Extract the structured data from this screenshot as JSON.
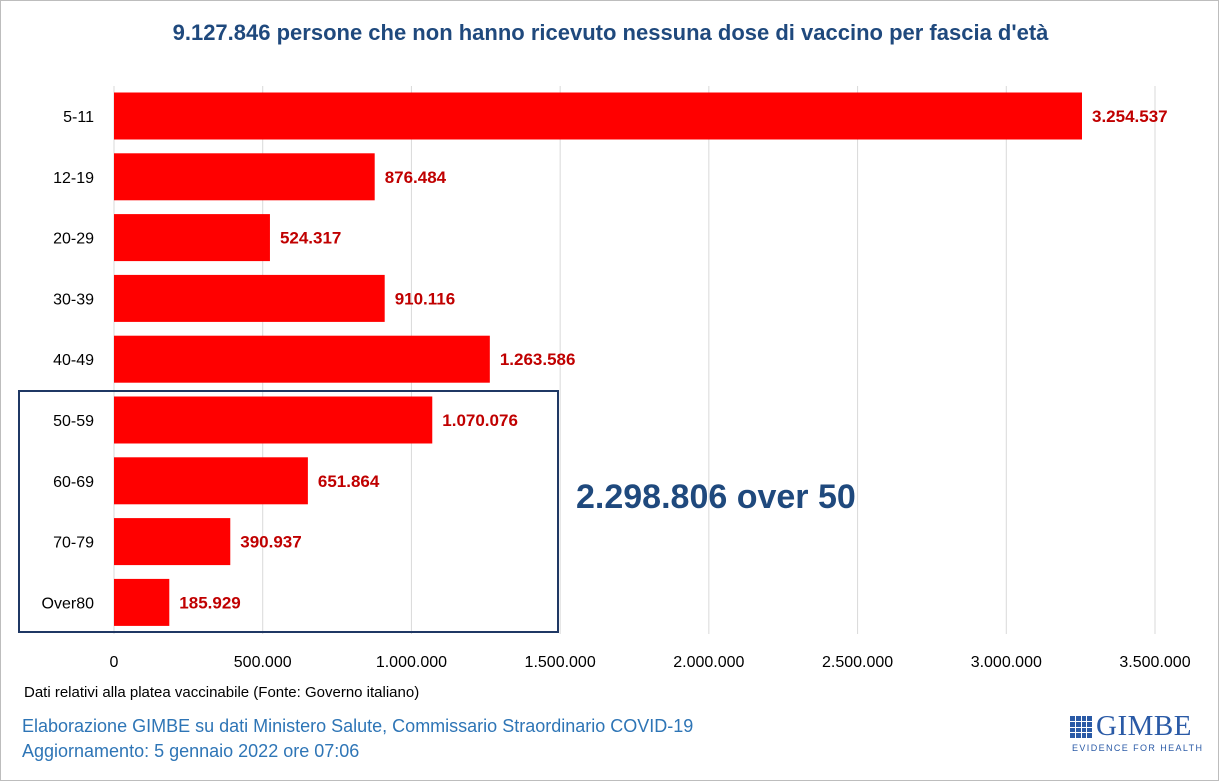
{
  "chart_data": {
    "type": "bar",
    "orientation": "horizontal",
    "title": "9.127.846 persone che non hanno ricevuto nessuna dose di vaccino per fascia d'età",
    "categories": [
      "5-11",
      "12-19",
      "20-29",
      "30-39",
      "40-49",
      "50-59",
      "60-69",
      "70-79",
      "Over80"
    ],
    "values": [
      3254537,
      876484,
      524317,
      910116,
      1263586,
      1070076,
      651864,
      390937,
      185929
    ],
    "value_labels": [
      "3.254.537",
      "876.484",
      "524.317",
      "910.116",
      "1.263.586",
      "1.070.076",
      "651.864",
      "390.937",
      "185.929"
    ],
    "x_ticks": [
      0,
      500000,
      1000000,
      1500000,
      2000000,
      2500000,
      3000000,
      3500000
    ],
    "x_tick_labels": [
      "0",
      "500.000",
      "1.000.000",
      "1.500.000",
      "2.000.000",
      "2.500.000",
      "3.000.000",
      "3.500.000"
    ],
    "xlim": [
      0,
      3500000
    ],
    "xlabel": "",
    "ylabel": "",
    "grid": "vertical",
    "legend": "none",
    "bar_color": "#ff0000",
    "value_label_color": "#c00000",
    "highlight": {
      "categories": [
        "50-59",
        "60-69",
        "70-79",
        "Over80"
      ],
      "box_color": "#1f3864",
      "label": "2.298.806 over 50"
    }
  },
  "footer": {
    "source_note": "Dati relativi alla platea vaccinabile (Fonte: Governo italiano)",
    "credit_line_1": "Elaborazione GIMBE su dati Ministero Salute, Commissario Straordinario COVID-19",
    "credit_line_2": "Aggiornamento: 5 gennaio 2022 ore 07:06"
  },
  "logo": {
    "name": "GIMBE",
    "tagline": "EVIDENCE FOR HEALTH",
    "color": "#2a5aa6"
  }
}
